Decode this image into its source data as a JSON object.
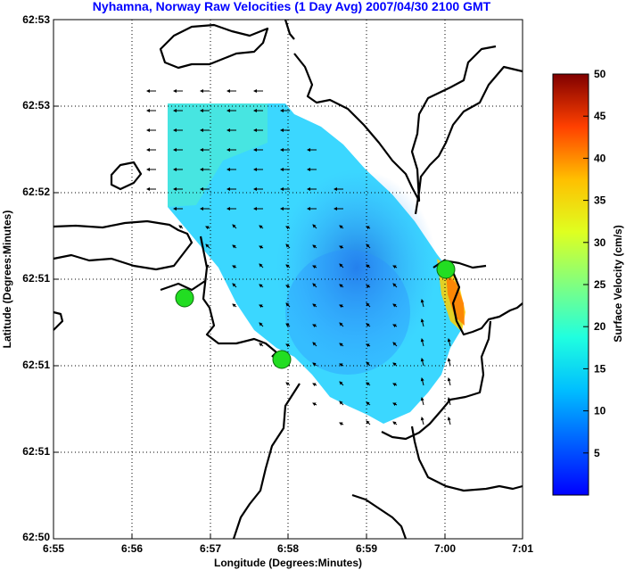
{
  "title": "Nyhamna, Norway Raw Velocities (1 Day Avg) 2007/04/30 2100 GMT",
  "axes": {
    "xlabel": "Longitude (Degrees:Minutes)",
    "ylabel": "Latitude (Degrees:Minutes)",
    "x_ticks": [
      "6:55",
      "6:56",
      "6:57",
      "6:58",
      "6:59",
      "7:00",
      "7:01"
    ],
    "y_ticks": [
      "62:53",
      "62:53",
      "62:52",
      "62:51",
      "62:51",
      "62:51",
      "62:50"
    ],
    "grid": "dotted"
  },
  "colorbar": {
    "label": "Surface Velocity (cm/s)",
    "ticks": [
      "50",
      "45",
      "40",
      "35",
      "30",
      "25",
      "20",
      "15",
      "10",
      "5"
    ],
    "range": [
      0,
      50
    ],
    "colormap": "jet"
  },
  "colors": {
    "title": "#0000ff",
    "coast": "#000000",
    "station_marker": "#22dd22",
    "vector": "#000000"
  },
  "stations": {
    "count": 3,
    "marker_icon": "green-circle-icon"
  },
  "vectors": {
    "description_icon": "arrow-icon"
  }
}
